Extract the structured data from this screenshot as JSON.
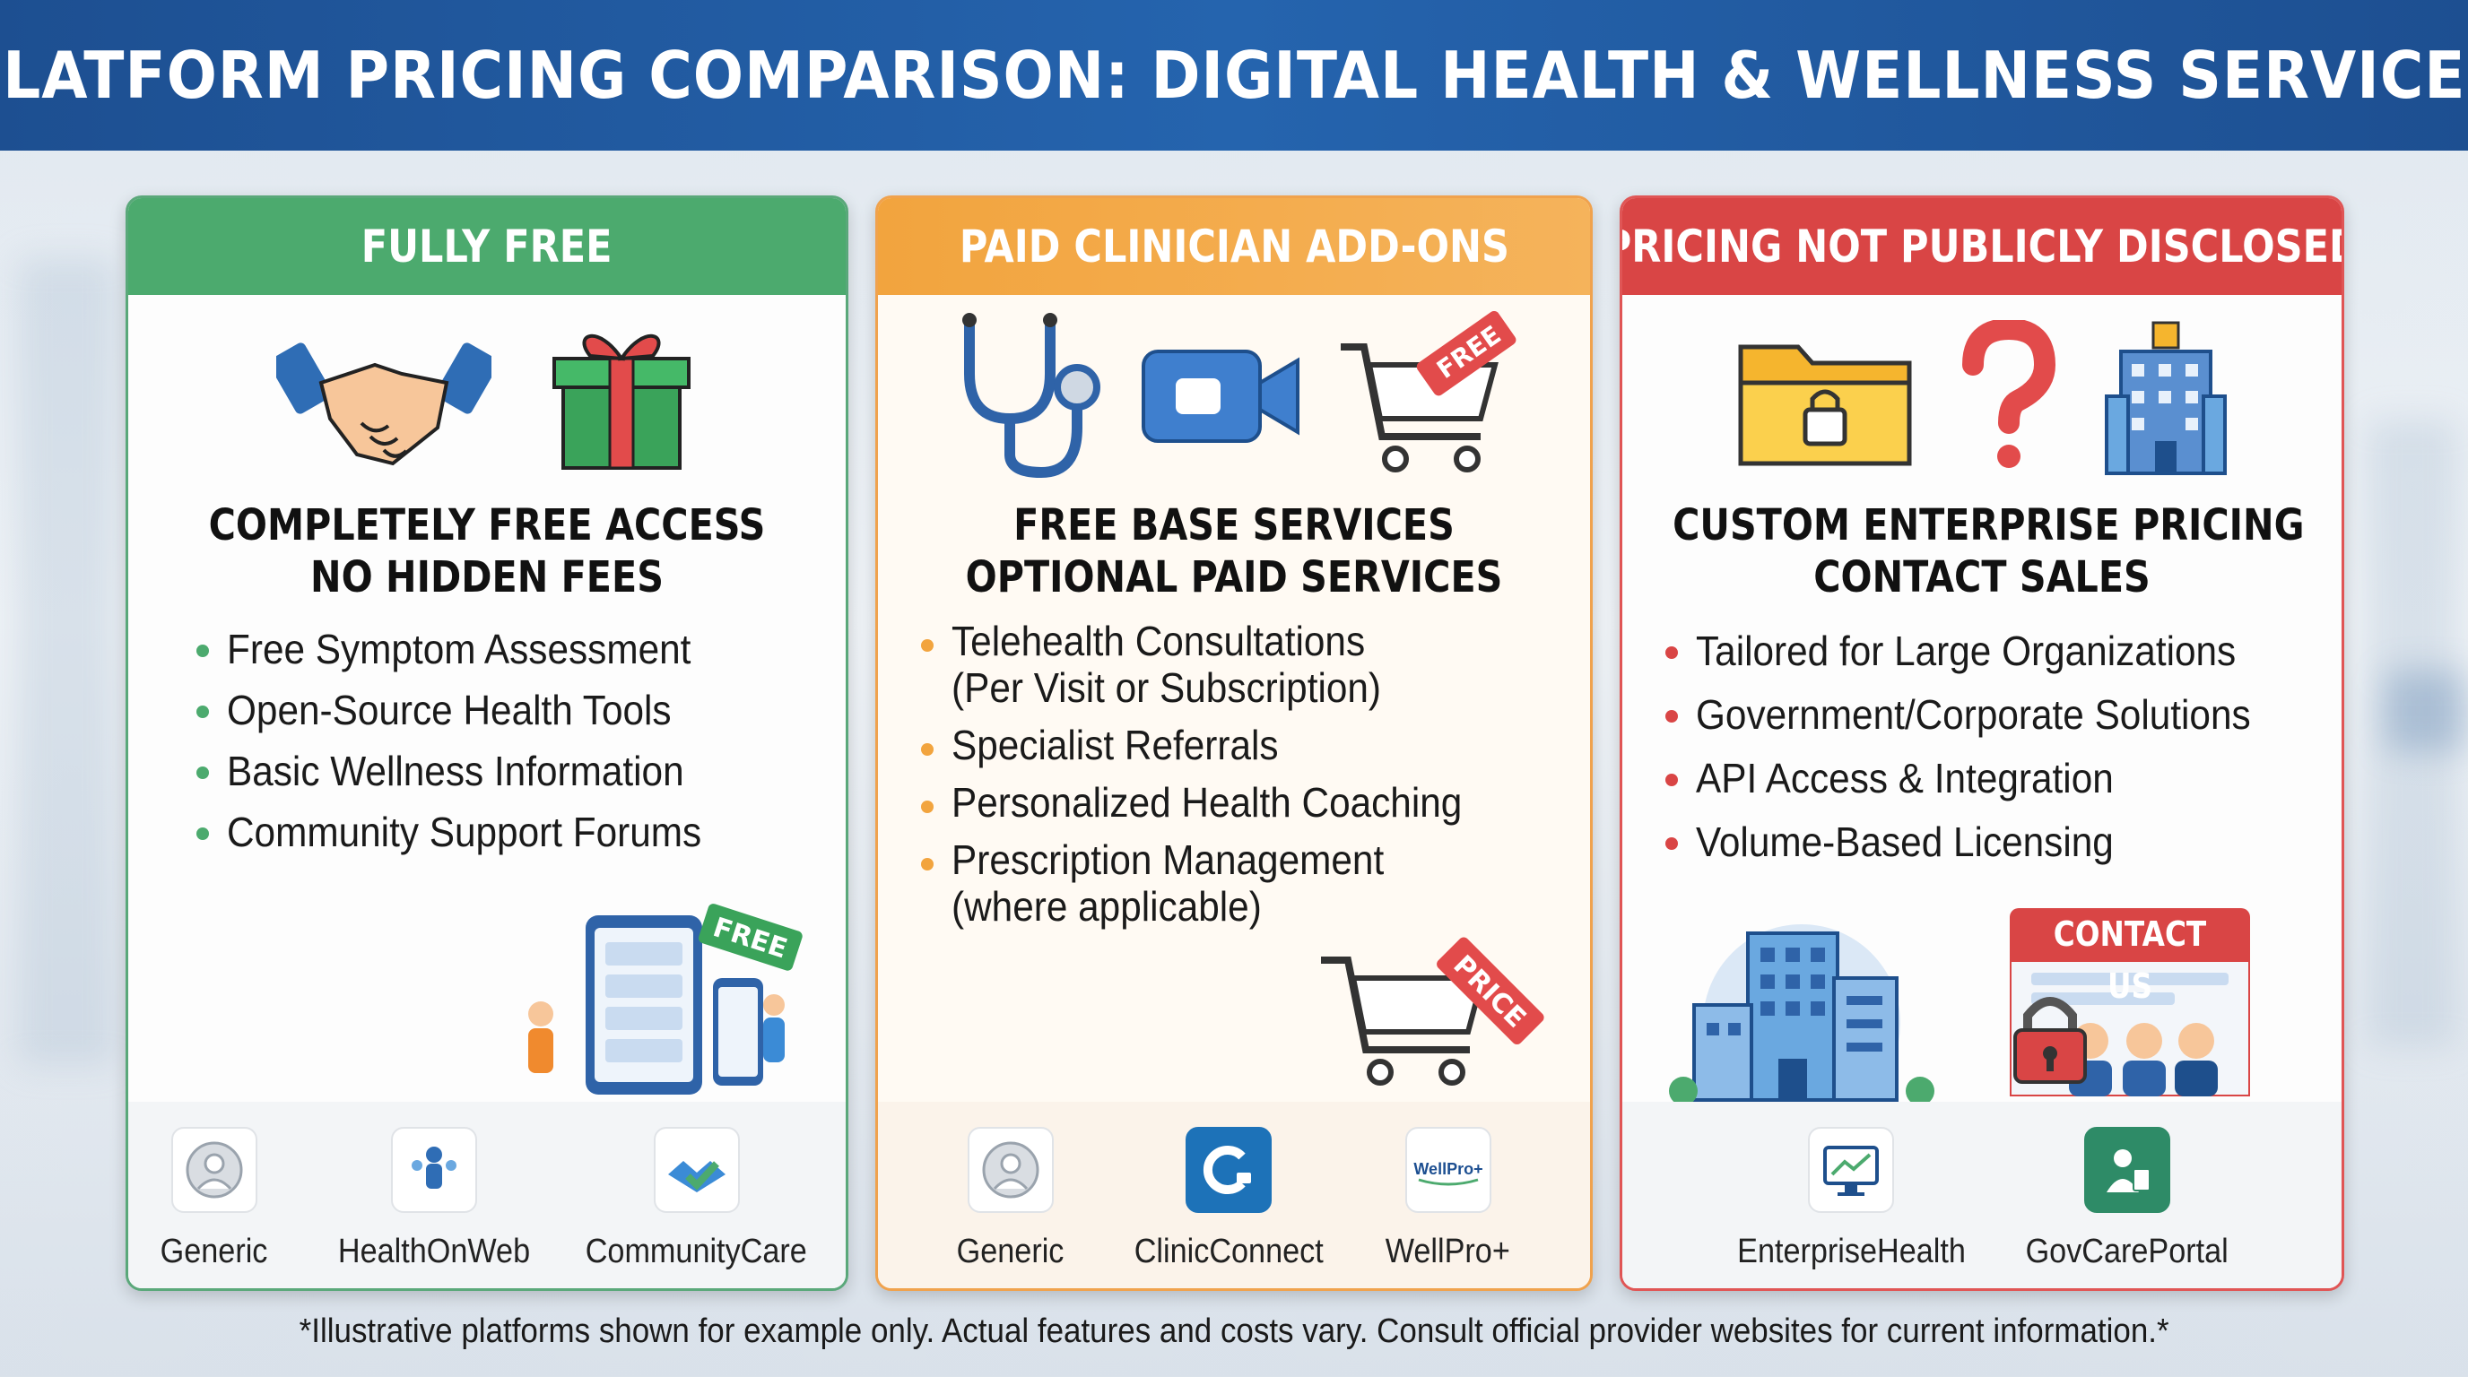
{
  "title": "PLATFORM PRICING COMPARISON: DIGITAL HEALTH & WELLNESS SERVICES",
  "colors": {
    "banner": "#1d4f91",
    "free": "#4caa6e",
    "paid": "#f2a43e",
    "undisclosed": "#d94545"
  },
  "panels": [
    {
      "header": "FULLY FREE",
      "icons": [
        "handshake-icon",
        "gift-box-icon"
      ],
      "headline": [
        "COMPLETELY FREE ACCESS",
        "NO HIDDEN FEES"
      ],
      "bullets": [
        "Free Symptom Assessment",
        "Open-Source Health Tools",
        "Basic Wellness Information",
        "Community Support Forums"
      ],
      "badge": "FREE",
      "logos": [
        {
          "icon": "generic-user-icon",
          "name": "Generic"
        },
        {
          "icon": "health-on-web-icon",
          "name": "HealthOnWeb"
        },
        {
          "icon": "community-care-icon",
          "name": "CommunityCare"
        }
      ]
    },
    {
      "header": "PAID CLINICIAN ADD-ONS",
      "icons": [
        "stethoscope-icon",
        "video-camera-icon",
        "shopping-cart-free-icon"
      ],
      "icon_tag": "FREE",
      "headline": [
        "FREE BASE SERVICES",
        "OPTIONAL PAID SERVICES"
      ],
      "bullets": [
        {
          "main": "Telehealth Consultations",
          "sub": "(Per Visit or Subscription)"
        },
        {
          "main": "Specialist Referrals",
          "sub": ""
        },
        {
          "main": "Personalized Health Coaching",
          "sub": ""
        },
        {
          "main": "Prescription Management",
          "sub": "(where applicable)"
        }
      ],
      "badge": "PRICE",
      "logos": [
        {
          "icon": "generic-user-icon",
          "name": "Generic"
        },
        {
          "icon": "clinic-connect-icon",
          "name": "ClinicConnect"
        },
        {
          "icon": "wellpro-icon",
          "name": "WellPro+",
          "logo_text": "WellPro+"
        }
      ]
    },
    {
      "header": "PRICING NOT PUBLICLY DISCLOSED",
      "icons": [
        "locked-folder-icon",
        "question-mark-icon",
        "office-building-icon"
      ],
      "headline": [
        "CUSTOM ENTERPRISE PRICING",
        "CONTACT SALES"
      ],
      "bullets": [
        "Tailored for Large Organizations",
        "Government/Corporate Solutions",
        "API Access & Integration",
        "Volume-Based Licensing"
      ],
      "contact_label": "CONTACT US",
      "logos": [
        {
          "icon": "enterprise-health-icon",
          "name": "EnterpriseHealth"
        },
        {
          "icon": "gov-care-portal-icon",
          "name": "GovCarePortal"
        }
      ]
    }
  ],
  "footnote": "*Illustrative platforms shown for example only. Actual features and costs vary. Consult official provider websites for current information.*"
}
